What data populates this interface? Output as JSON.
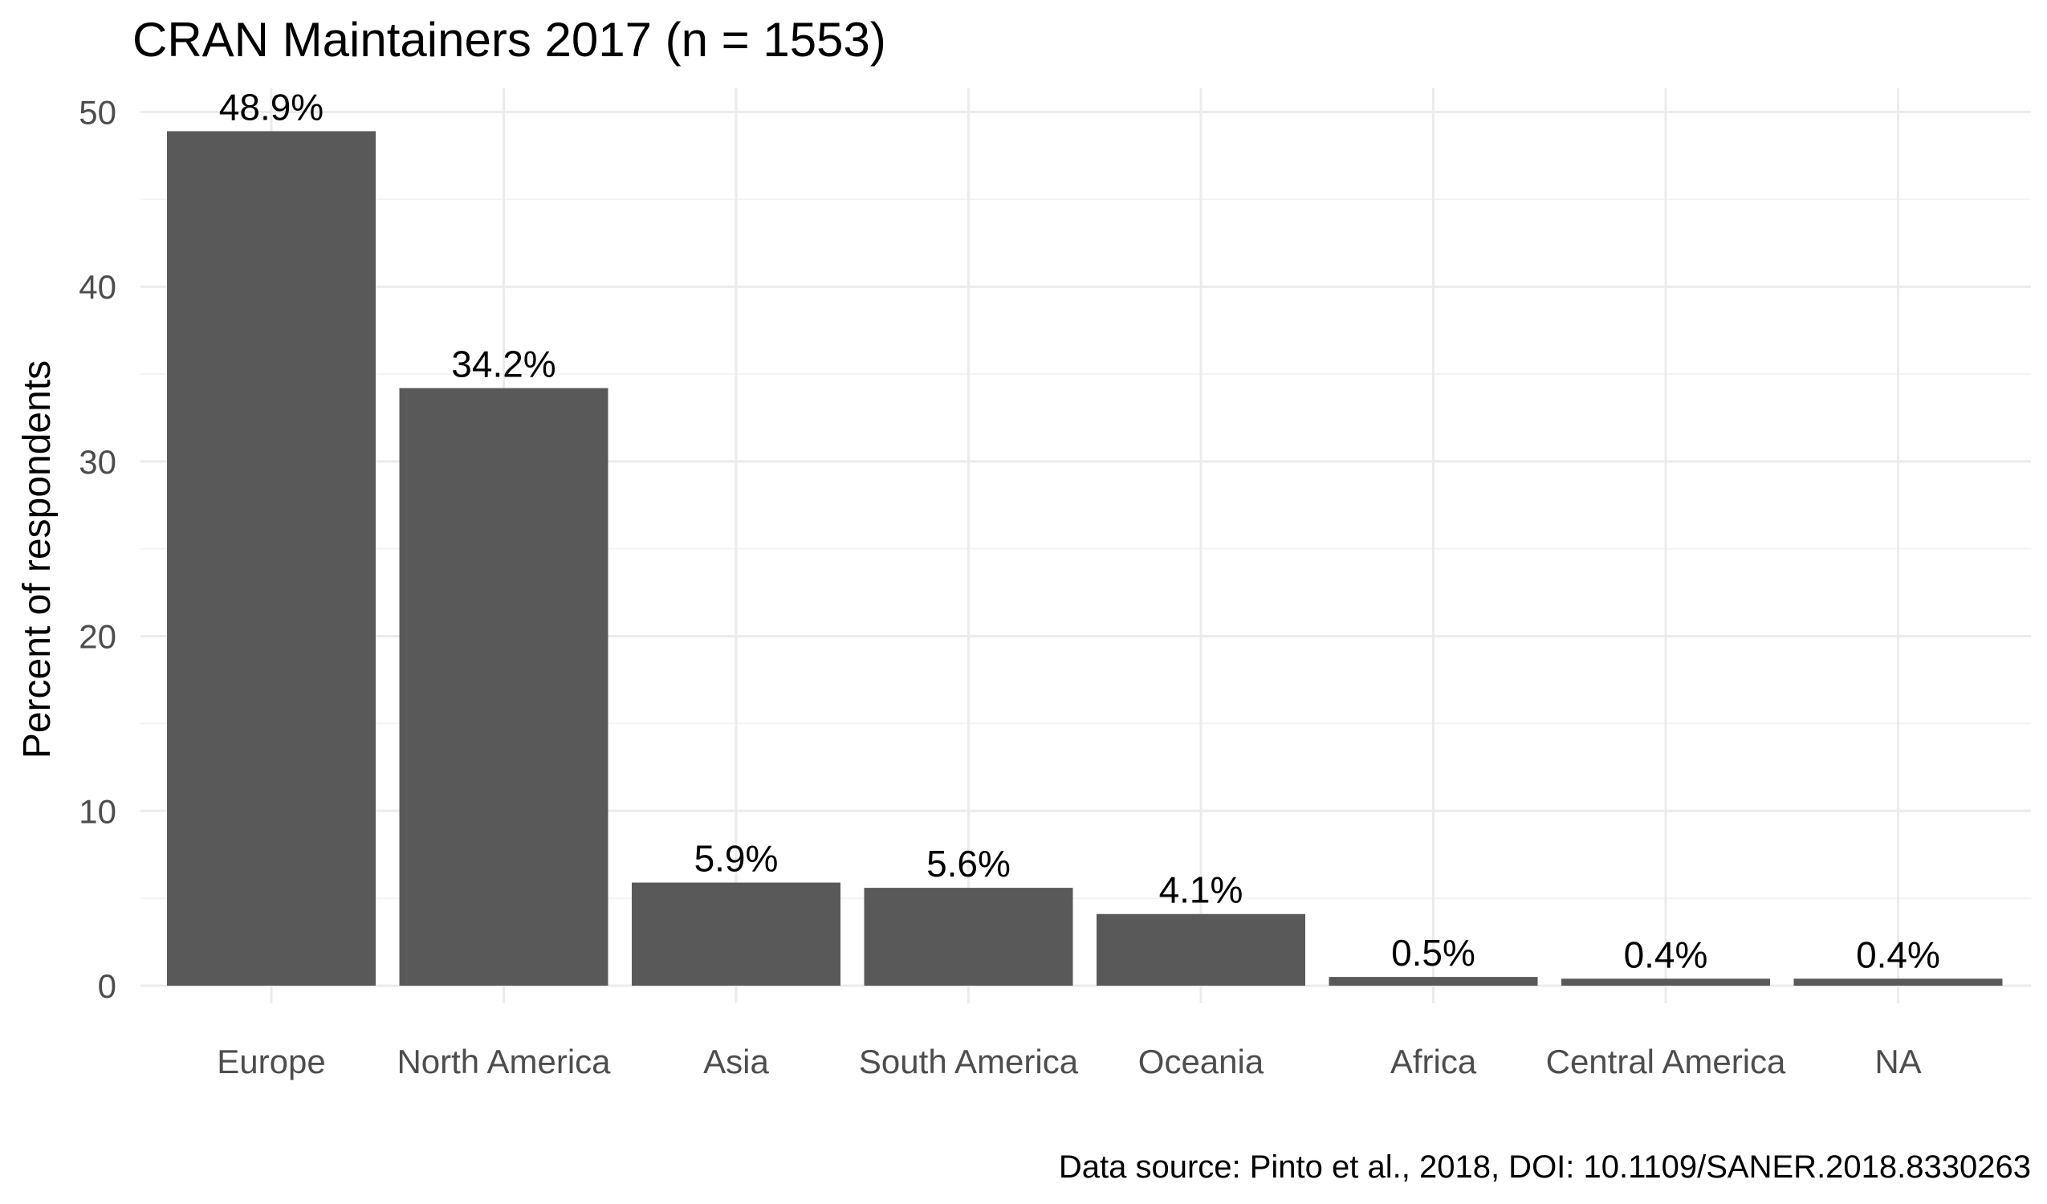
{
  "chart_data": {
    "type": "bar",
    "title": "CRAN Maintainers 2017 (n = 1553)",
    "xlabel": "",
    "ylabel": "Percent of respondents",
    "categories": [
      "Europe",
      "North America",
      "Asia",
      "South America",
      "Oceania",
      "Africa",
      "Central America",
      "NA"
    ],
    "values": [
      48.9,
      34.2,
      5.9,
      5.6,
      4.1,
      0.5,
      0.4,
      0.4
    ],
    "data_labels": [
      "48.9%",
      "34.2%",
      "5.9%",
      "5.6%",
      "4.1%",
      "0.5%",
      "0.4%",
      "0.4%"
    ],
    "ylim": [
      0,
      51.4
    ],
    "yticks": [
      0,
      10,
      20,
      30,
      40,
      50
    ],
    "grid": true,
    "legend": "none",
    "bar_color": "#595959",
    "caption": "Data source: Pinto et al., 2018, DOI: 10.1109/SANER.2018.8330263"
  }
}
